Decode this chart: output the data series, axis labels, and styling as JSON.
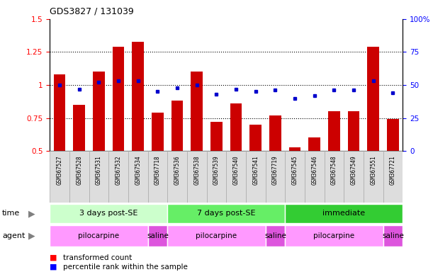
{
  "title": "GDS3827 / 131039",
  "samples": [
    "GSM367527",
    "GSM367528",
    "GSM367531",
    "GSM367532",
    "GSM367534",
    "GSM367718",
    "GSM367536",
    "GSM367538",
    "GSM367539",
    "GSM367540",
    "GSM367541",
    "GSM367719",
    "GSM367545",
    "GSM367546",
    "GSM367548",
    "GSM367549",
    "GSM367551",
    "GSM367721"
  ],
  "red_values": [
    1.08,
    0.85,
    1.1,
    1.29,
    1.33,
    0.79,
    0.88,
    1.1,
    0.72,
    0.86,
    0.7,
    0.77,
    0.53,
    0.6,
    0.8,
    0.8,
    1.29,
    0.74
  ],
  "blue_values": [
    50,
    47,
    52,
    53,
    53,
    45,
    48,
    50,
    43,
    47,
    45,
    46,
    40,
    42,
    46,
    46,
    53,
    44
  ],
  "blue_visible": [
    true,
    true,
    true,
    true,
    true,
    true,
    true,
    true,
    true,
    true,
    true,
    true,
    true,
    true,
    true,
    true,
    true,
    true
  ],
  "ylim_left": [
    0.5,
    1.5
  ],
  "ylim_right": [
    0,
    100
  ],
  "yticks_left": [
    0.5,
    0.75,
    1.0,
    1.25,
    1.5
  ],
  "yticks_right": [
    0,
    25,
    50,
    75,
    100
  ],
  "ytick_labels_left": [
    "0.5",
    "0.75",
    "1",
    "1.25",
    "1.5"
  ],
  "ytick_labels_right": [
    "0",
    "25",
    "50",
    "75",
    "100%"
  ],
  "bar_color": "#CC0000",
  "dot_color": "#0000CC",
  "bar_width": 0.6,
  "time_group_data": [
    {
      "label": "3 days post-SE",
      "start": 0,
      "end": 5,
      "color": "#CCFFCC"
    },
    {
      "label": "7 days post-SE",
      "start": 6,
      "end": 11,
      "color": "#66EE66"
    },
    {
      "label": "immediate",
      "start": 12,
      "end": 17,
      "color": "#33CC33"
    }
  ],
  "agent_group_data": [
    {
      "label": "pilocarpine",
      "start": 0,
      "end": 4,
      "color": "#FF99FF"
    },
    {
      "label": "saline",
      "start": 5,
      "end": 5,
      "color": "#DD55DD"
    },
    {
      "label": "pilocarpine",
      "start": 6,
      "end": 10,
      "color": "#FF99FF"
    },
    {
      "label": "saline",
      "start": 11,
      "end": 11,
      "color": "#DD55DD"
    },
    {
      "label": "pilocarpine",
      "start": 12,
      "end": 16,
      "color": "#FF99FF"
    },
    {
      "label": "saline",
      "start": 17,
      "end": 17,
      "color": "#DD55DD"
    }
  ],
  "tick_bg_color": "#DDDDDD",
  "tick_border_color": "#AAAAAA"
}
